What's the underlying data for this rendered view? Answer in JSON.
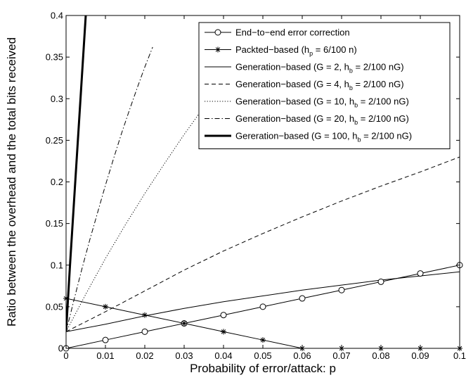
{
  "chart_data": {
    "type": "line",
    "title": "",
    "xlabel": "Probability of error/attack: p",
    "ylabel": "Ratio between the overhead and the total bits received",
    "xlim": [
      0,
      0.1
    ],
    "ylim": [
      0,
      0.4
    ],
    "xticks": [
      "0",
      "0.01",
      "0.02",
      "0.03",
      "0.04",
      "0.05",
      "0.06",
      "0.07",
      "0.08",
      "0.09",
      "0.1"
    ],
    "yticks": [
      "0",
      "0.05",
      "0.1",
      "0.15",
      "0.2",
      "0.25",
      "0.3",
      "0.35",
      "0.4"
    ],
    "grid": false,
    "legend_position": "top-right",
    "series": [
      {
        "name": "End−to−end error correction",
        "legend_main": "End−to−end error correction",
        "legend_sub": "",
        "legend_tail": "",
        "style": "solid-circle-markers",
        "x": [
          0,
          0.01,
          0.02,
          0.03,
          0.04,
          0.05,
          0.06,
          0.07,
          0.08,
          0.09,
          0.1
        ],
        "y": [
          0,
          0.01,
          0.02,
          0.03,
          0.04,
          0.05,
          0.06,
          0.07,
          0.08,
          0.09,
          0.1
        ]
      },
      {
        "name": "Packted−based (h_p = 6/100 n)",
        "legend_main": "Packted−based (h",
        "legend_sub": "p",
        "legend_tail": " = 6/100 n)",
        "style": "solid-star-markers",
        "x": [
          0,
          0.01,
          0.02,
          0.03,
          0.04,
          0.05,
          0.06,
          0.07,
          0.08,
          0.09,
          0.1
        ],
        "y": [
          0.06,
          0.05,
          0.04,
          0.03,
          0.02,
          0.01,
          0,
          0,
          0,
          0,
          0
        ]
      },
      {
        "name": "Generation−based (G = 2, h_b = 2/100 nG)",
        "legend_main": "Generation−based (G = 2, h",
        "legend_sub": "b",
        "legend_tail": " = 2/100 nG)",
        "style": "solid",
        "x": [
          0,
          0.01,
          0.02,
          0.03,
          0.04,
          0.05,
          0.06,
          0.07,
          0.08,
          0.09,
          0.1
        ],
        "y": [
          0.02,
          0.029,
          0.039,
          0.048,
          0.056,
          0.063,
          0.07,
          0.076,
          0.082,
          0.087,
          0.092
        ]
      },
      {
        "name": "Generation−based (G = 4, h_b = 2/100 nG)",
        "legend_main": "Generation−based (G = 4, h",
        "legend_sub": "b",
        "legend_tail": " = 2/100 nG)",
        "style": "dashed",
        "x": [
          0,
          0.01,
          0.02,
          0.03,
          0.04,
          0.05,
          0.06,
          0.07,
          0.08,
          0.09,
          0.1
        ],
        "y": [
          0.02,
          0.044,
          0.069,
          0.094,
          0.117,
          0.138,
          0.158,
          0.177,
          0.195,
          0.212,
          0.23
        ]
      },
      {
        "name": "Generation−based (G = 10, h_b = 2/100 nG)",
        "legend_main": "Generation−based (G = 10, h",
        "legend_sub": "b",
        "legend_tail": " = 2/100 nG)",
        "style": "dotted",
        "x": [
          0,
          0.005,
          0.01,
          0.015,
          0.02,
          0.025,
          0.03,
          0.035,
          0.04,
          0.045,
          0.05
        ],
        "y": [
          0.02,
          0.065,
          0.108,
          0.148,
          0.186,
          0.222,
          0.257,
          0.29,
          0.32,
          0.35,
          0.378
        ]
      },
      {
        "name": "Generation−based (G = 20, h_b = 2/100 nG)",
        "legend_main": "Generation−based (G = 20, h",
        "legend_sub": "b",
        "legend_tail": " = 2/100 nG)",
        "style": "dashdot",
        "x": [
          0,
          0.002,
          0.004,
          0.006,
          0.008,
          0.01,
          0.012,
          0.014,
          0.016,
          0.018,
          0.02,
          0.022
        ],
        "y": [
          0.02,
          0.058,
          0.095,
          0.13,
          0.163,
          0.196,
          0.227,
          0.257,
          0.285,
          0.312,
          0.338,
          0.362
        ]
      },
      {
        "name": "Gereration−based (G = 100, h_b = 2/100 nG)",
        "legend_main": "Gereration−based (G = 100, h",
        "legend_sub": "b",
        "legend_tail": " = 2/100 nG)",
        "style": "thick",
        "x": [
          0,
          0.001,
          0.002,
          0.003,
          0.004,
          0.005
        ],
        "y": [
          0.02,
          0.1,
          0.175,
          0.25,
          0.325,
          0.4
        ]
      }
    ]
  }
}
